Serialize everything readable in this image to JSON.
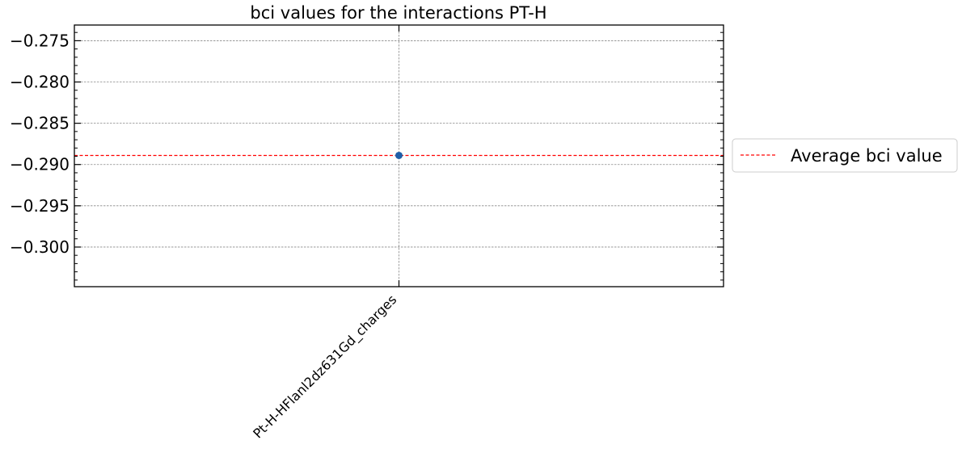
{
  "chart_data": {
    "type": "scatter",
    "title": "bci values for the interactions PT-H",
    "xlabel": "",
    "ylabel": "",
    "categories": [
      "Pt-H-HFlanl2dz631Gd_charges"
    ],
    "series": [
      {
        "values": [
          -0.2889
        ],
        "color": "#1f5fa8"
      }
    ],
    "average": {
      "label": "Average bci value",
      "value": -0.2889,
      "color": "#ff0000",
      "style": "dashed"
    },
    "ylim": [
      -0.3048,
      -0.2731
    ],
    "yticks": [
      -0.3,
      -0.295,
      -0.29,
      -0.285,
      -0.28,
      -0.275
    ],
    "ytick_labels": [
      "−0.300",
      "−0.295",
      "−0.290",
      "−0.285",
      "−0.280",
      "−0.275"
    ],
    "grid": true,
    "legend_position": "center-right outside"
  }
}
